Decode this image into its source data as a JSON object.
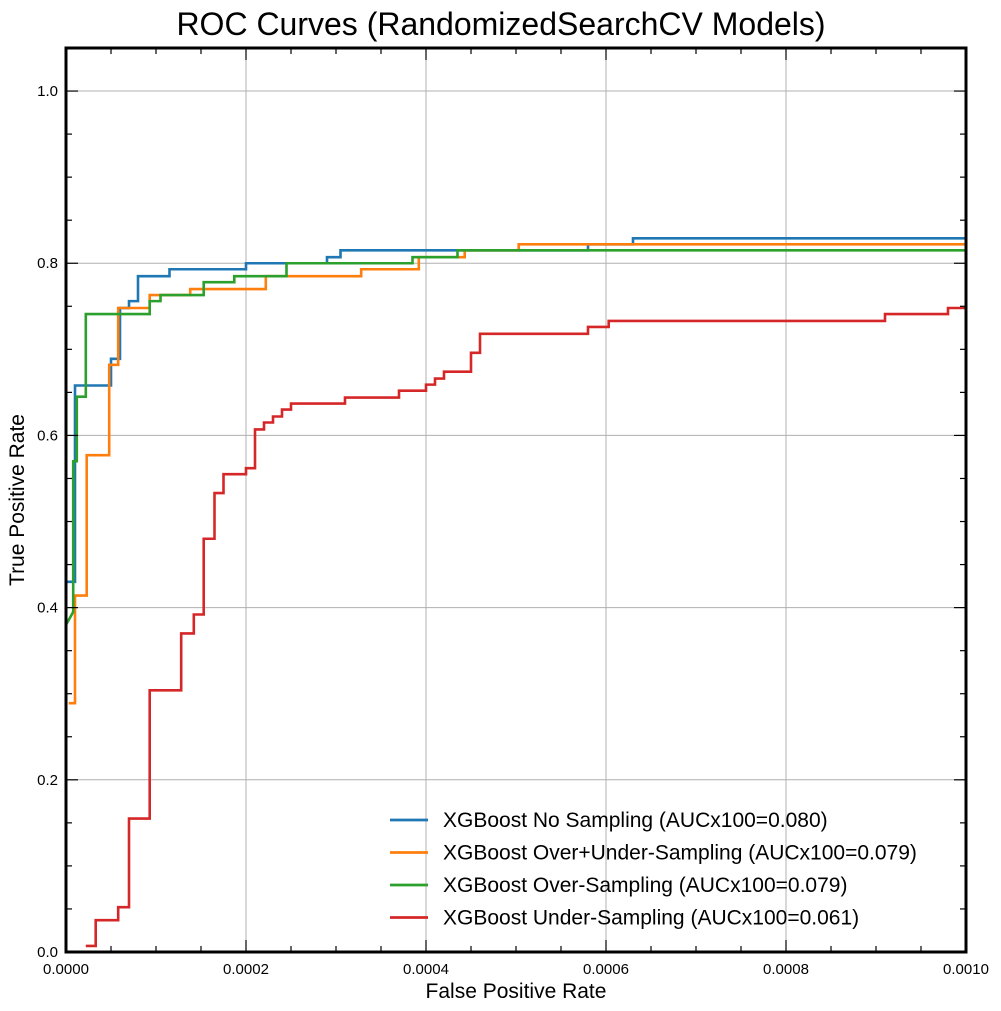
{
  "chart_data": {
    "type": "line",
    "title": "ROC Curves (RandomizedSearchCV Models)",
    "xlabel": "False Positive Rate",
    "ylabel": "True Positive Rate",
    "xlim": [
      0,
      0.001
    ],
    "ylim": [
      0,
      1.05
    ],
    "grid": true,
    "legend_position": "lower-right",
    "x_ticks": [
      0,
      0.0002,
      0.0004,
      0.0006,
      0.0008,
      0.001
    ],
    "x_tick_labels": [
      "0.0000",
      "0.0002",
      "0.0004",
      "0.0006",
      "0.0008",
      "0.0010"
    ],
    "y_ticks": [
      0,
      0.2,
      0.4,
      0.6,
      0.8,
      1.0
    ],
    "y_tick_labels": [
      "0.0",
      "0.2",
      "0.4",
      "0.6",
      "0.8",
      "1.0"
    ],
    "series": [
      {
        "name": "XGBoost No Sampling (AUCx100=0.080)",
        "color": "#1f77b4",
        "x": [
          0,
          5e-06,
          5e-06,
          1e-05,
          1e-05,
          5e-05,
          5e-05,
          6e-05,
          6e-05,
          7e-05,
          7e-05,
          8e-05,
          8e-05,
          0.000115,
          0.000115,
          0.0002,
          0.0002,
          0.00029,
          0.00029,
          0.000305,
          0.000305,
          0.00058,
          0.00058,
          0.00063,
          0.00063,
          0.001
        ],
        "y": [
          0.43,
          0.43,
          0.43,
          0.43,
          0.658,
          0.658,
          0.689,
          0.689,
          0.748,
          0.748,
          0.756,
          0.756,
          0.785,
          0.785,
          0.793,
          0.793,
          0.8,
          0.8,
          0.807,
          0.807,
          0.815,
          0.815,
          0.822,
          0.822,
          0.829,
          0.829
        ]
      },
      {
        "name": "XGBoost Over+Under-Sampling (AUCx100=0.079)",
        "color": "#ff7f0e",
        "x": [
          3e-06,
          1e-05,
          1e-05,
          2.3e-05,
          2.3e-05,
          4.8e-05,
          4.8e-05,
          5.8e-05,
          5.8e-05,
          9.3e-05,
          9.3e-05,
          0.000138,
          0.000138,
          0.000222,
          0.000222,
          0.000262,
          0.000262,
          0.000328,
          0.000328,
          0.000392,
          0.000392,
          0.000443,
          0.000443,
          0.000503,
          0.000503,
          0.001
        ],
        "y": [
          0.289,
          0.289,
          0.414,
          0.414,
          0.577,
          0.577,
          0.682,
          0.682,
          0.748,
          0.748,
          0.763,
          0.763,
          0.77,
          0.77,
          0.785,
          0.785,
          0.785,
          0.785,
          0.793,
          0.793,
          0.807,
          0.807,
          0.815,
          0.815,
          0.822,
          0.822
        ]
      },
      {
        "name": "XGBoost Over-Sampling (AUCx100=0.079)",
        "color": "#2ca02c",
        "x": [
          0,
          8e-06,
          8e-06,
          1.2e-05,
          1.2e-05,
          2.2e-05,
          2.2e-05,
          3.3e-05,
          3.3e-05,
          9.3e-05,
          9.3e-05,
          0.000105,
          0.000105,
          0.000153,
          0.000153,
          0.000187,
          0.000187,
          0.000245,
          0.000245,
          0.000275,
          0.000275,
          0.000385,
          0.000385,
          0.000435,
          0.000435,
          0.000515,
          0.000515,
          0.001
        ],
        "y": [
          0.38,
          0.395,
          0.57,
          0.57,
          0.645,
          0.645,
          0.741,
          0.741,
          0.741,
          0.741,
          0.756,
          0.756,
          0.763,
          0.763,
          0.778,
          0.778,
          0.785,
          0.785,
          0.8,
          0.8,
          0.8,
          0.8,
          0.807,
          0.807,
          0.815,
          0.815,
          0.815,
          0.815
        ]
      },
      {
        "name": "XGBoost Under-Sampling (AUCx100=0.061)",
        "color": "#d62728",
        "x": [
          2.2e-05,
          3.3e-05,
          3.3e-05,
          5.8e-05,
          5.8e-05,
          7e-05,
          7e-05,
          9.3e-05,
          9.3e-05,
          0.000128,
          0.000128,
          0.000142,
          0.000142,
          0.000153,
          0.000153,
          0.000165,
          0.000165,
          0.000175,
          0.000175,
          0.0002,
          0.0002,
          0.00021,
          0.00021,
          0.00022,
          0.00022,
          0.00023,
          0.00023,
          0.00024,
          0.00024,
          0.00025,
          0.00025,
          0.00031,
          0.00031,
          0.00037,
          0.00037,
          0.0004,
          0.0004,
          0.00041,
          0.00041,
          0.00042,
          0.00042,
          0.00045,
          0.00045,
          0.00046,
          0.00046,
          0.00058,
          0.00058,
          0.000603,
          0.000603,
          0.00091,
          0.00091,
          0.00098,
          0.00098,
          0.001
        ],
        "y": [
          0.007,
          0.007,
          0.037,
          0.037,
          0.052,
          0.052,
          0.155,
          0.155,
          0.304,
          0.304,
          0.37,
          0.37,
          0.392,
          0.392,
          0.48,
          0.48,
          0.533,
          0.533,
          0.555,
          0.555,
          0.562,
          0.562,
          0.607,
          0.607,
          0.615,
          0.615,
          0.622,
          0.622,
          0.63,
          0.63,
          0.637,
          0.637,
          0.644,
          0.644,
          0.652,
          0.652,
          0.659,
          0.659,
          0.666,
          0.666,
          0.674,
          0.674,
          0.696,
          0.696,
          0.718,
          0.718,
          0.726,
          0.726,
          0.733,
          0.733,
          0.741,
          0.741,
          0.748,
          0.748
        ]
      }
    ]
  }
}
